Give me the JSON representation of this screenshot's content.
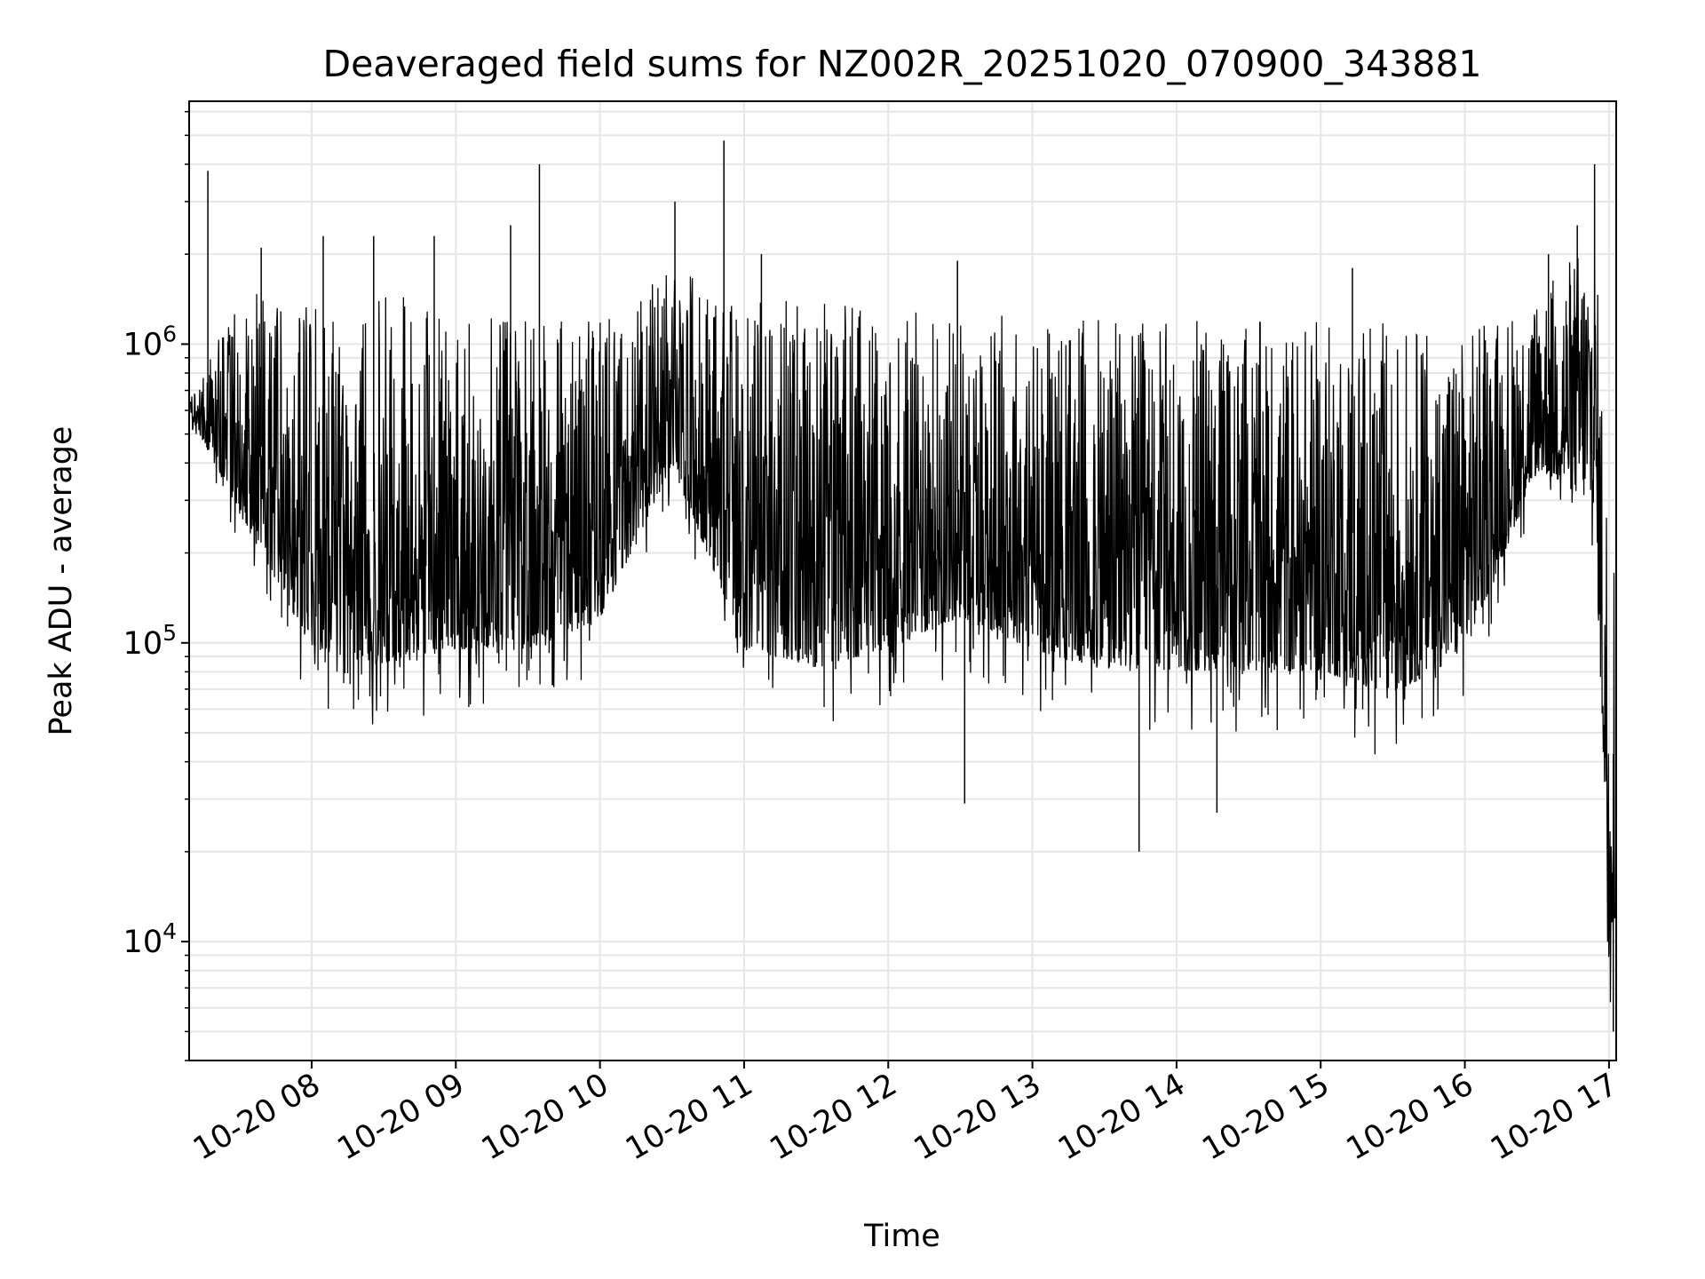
{
  "chart_data": {
    "type": "line",
    "title": "Deaveraged field sums for NZ002R_20251020_070900_343881",
    "xlabel": "Time",
    "ylabel": "Peak ADU - average",
    "yscale": "log",
    "grid": true,
    "xlim_hours": [
      7.15,
      17.05
    ],
    "ylim": [
      4000,
      6500000
    ],
    "x_ticks": [
      {
        "hour": 8,
        "label": "10-20 08"
      },
      {
        "hour": 9,
        "label": "10-20 09"
      },
      {
        "hour": 10,
        "label": "10-20 10"
      },
      {
        "hour": 11,
        "label": "10-20 11"
      },
      {
        "hour": 12,
        "label": "10-20 12"
      },
      {
        "hour": 13,
        "label": "10-20 13"
      },
      {
        "hour": 14,
        "label": "10-20 14"
      },
      {
        "hour": 15,
        "label": "10-20 15"
      },
      {
        "hour": 16,
        "label": "10-20 16"
      },
      {
        "hour": 17,
        "label": "10-20 17"
      }
    ],
    "y_ticks": [
      {
        "value": 10000,
        "base": "10",
        "exp": "4"
      },
      {
        "value": 100000,
        "base": "10",
        "exp": "5"
      },
      {
        "value": 1000000,
        "base": "10",
        "exp": "6"
      }
    ],
    "series": [
      {
        "name": "deaveraged field sums",
        "color": "#000000",
        "sampling_note": "hourly envelope of the dense per-frame trace; upper/lower bounds in ADU",
        "envelope_hours": [
          7.2,
          7.5,
          8.0,
          8.5,
          9.0,
          9.5,
          10.0,
          10.5,
          11.0,
          11.5,
          12.0,
          12.5,
          13.0,
          13.5,
          14.0,
          14.5,
          15.0,
          15.5,
          16.0,
          16.5,
          16.9,
          17.0
        ],
        "envelope_upper": [
          700000,
          1500000,
          1400000,
          1500000,
          1300000,
          1200000,
          1200000,
          1800000,
          1400000,
          1400000,
          1300000,
          1300000,
          1300000,
          1200000,
          1200000,
          1200000,
          1200000,
          1200000,
          1100000,
          1500000,
          2500000,
          300000
        ],
        "envelope_lower": [
          500000,
          200000,
          60000,
          50000,
          60000,
          60000,
          80000,
          300000,
          60000,
          50000,
          60000,
          80000,
          60000,
          50000,
          50000,
          50000,
          50000,
          40000,
          60000,
          300000,
          200000,
          6000
        ],
        "spikes": [
          {
            "hour": 7.28,
            "value": 3800000
          },
          {
            "hour": 7.65,
            "value": 2100000
          },
          {
            "hour": 8.08,
            "value": 2300000
          },
          {
            "hour": 8.43,
            "value": 2300000
          },
          {
            "hour": 8.85,
            "value": 2300000
          },
          {
            "hour": 9.38,
            "value": 2500000
          },
          {
            "hour": 9.58,
            "value": 4000000
          },
          {
            "hour": 10.52,
            "value": 3000000
          },
          {
            "hour": 10.86,
            "value": 4800000
          },
          {
            "hour": 11.12,
            "value": 2000000
          },
          {
            "hour": 12.48,
            "value": 1900000
          },
          {
            "hour": 12.53,
            "value": 29000
          },
          {
            "hour": 13.74,
            "value": 20000
          },
          {
            "hour": 14.28,
            "value": 27000
          },
          {
            "hour": 15.22,
            "value": 1800000
          },
          {
            "hour": 16.58,
            "value": 2000000
          },
          {
            "hour": 16.78,
            "value": 2500000
          },
          {
            "hour": 16.9,
            "value": 4000000
          },
          {
            "hour": 17.03,
            "value": 5000
          }
        ]
      }
    ]
  }
}
